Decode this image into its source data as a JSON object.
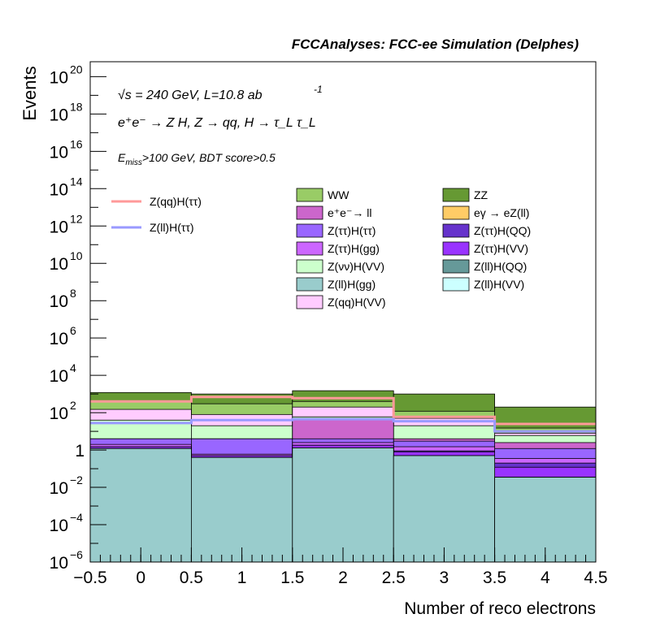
{
  "chart_data": {
    "type": "bar",
    "stacked": true,
    "log_y": true,
    "title": "FCCAnalyses: FCC-ee Simulation (Delphes)",
    "xlabel": "Number of reco electrons",
    "ylabel": "Events",
    "xlim": [
      -0.5,
      4.5
    ],
    "ylim_exp": [
      -6,
      20.8
    ],
    "x_ticks": [
      "−0.5",
      "0",
      "0.5",
      "1",
      "1.5",
      "2",
      "2.5",
      "3",
      "3.5",
      "4",
      "4.5"
    ],
    "y_ticks": [
      {
        "exp": -6,
        "label": "10",
        "sup": "−6"
      },
      {
        "exp": -4,
        "label": "10",
        "sup": "−4"
      },
      {
        "exp": -2,
        "label": "10",
        "sup": "−2"
      },
      {
        "exp": 0,
        "label": "1",
        "sup": ""
      },
      {
        "exp": 2,
        "label": "10",
        "sup": "2"
      },
      {
        "exp": 4,
        "label": "10",
        "sup": "4"
      },
      {
        "exp": 6,
        "label": "10",
        "sup": "6"
      },
      {
        "exp": 8,
        "label": "10",
        "sup": "8"
      },
      {
        "exp": 10,
        "label": "10",
        "sup": "10"
      },
      {
        "exp": 12,
        "label": "10",
        "sup": "12"
      },
      {
        "exp": 14,
        "label": "10",
        "sup": "14"
      },
      {
        "exp": 16,
        "label": "10",
        "sup": "16"
      },
      {
        "exp": 18,
        "label": "10",
        "sup": "18"
      },
      {
        "exp": 20,
        "label": "10",
        "sup": "20"
      }
    ],
    "bins": [
      0,
      1,
      2,
      3,
      4
    ],
    "annotations": {
      "line1": "√s = 240 GeV, L=10.8 ab",
      "line1_sup": "-1",
      "line2": "e⁺e⁻ → Z H, Z → qq, H → τ_L τ_L",
      "line3_main": "E",
      "line3_sub": "miss",
      "line3_rest": ">100 GeV, BDT score>0.5"
    },
    "stack_cumulative": [
      {
        "name": "Z(ll)H(gg)",
        "color": "#99cccc",
        "values": [
          1.2,
          0.4,
          1.3,
          0.5,
          0.035
        ]
      },
      {
        "name": "eγ → eZ(ll)",
        "color": "#ffcc66",
        "values": [
          1e-06,
          1e-06,
          0.01,
          0.5,
          0.035
        ]
      },
      {
        "name": "Z(ll)H(VV)",
        "color": "#ccffff",
        "values": [
          1.2,
          0.4,
          1.3,
          0.5,
          0.035
        ]
      },
      {
        "name": "Z(ll)H(QQ)",
        "color": "#669999",
        "values": [
          1.2,
          0.4,
          1.3,
          0.5,
          0.035
        ]
      },
      {
        "name": "Z(ττ)H(VV)",
        "color": "#9933ff",
        "values": [
          1.5,
          0.5,
          1.8,
          0.8,
          0.12
        ]
      },
      {
        "name": "Z(ττ)H(QQ)",
        "color": "#6633cc",
        "values": [
          1.5,
          0.5,
          1.8,
          0.9,
          0.2
        ]
      },
      {
        "name": "Z(ττ)H(gg)",
        "color": "#cc66ff",
        "values": [
          2.0,
          0.6,
          2.5,
          1.5,
          0.35
        ]
      },
      {
        "name": "Z(ττ)H(ττ)",
        "color": "#9966ff",
        "values": [
          4.0,
          4.0,
          4.0,
          3.0,
          1.2
        ]
      },
      {
        "name": "e⁺e⁻→ ll",
        "color": "#cc66cc",
        "values": [
          4.0,
          4.0,
          50,
          4.0,
          2.5
        ]
      },
      {
        "name": "Z(νν)H(VV)",
        "color": "#ccffcc",
        "values": [
          40,
          20,
          60,
          20,
          6
        ]
      },
      {
        "name": "Z(qq)H(VV)",
        "color": "#ffccff",
        "values": [
          150,
          80,
          200,
          50,
          8
        ]
      },
      {
        "name": "WW",
        "color": "#99cc66",
        "values": [
          400,
          300,
          400,
          120,
          15
        ]
      },
      {
        "name": "ZZ",
        "color": "#669933",
        "values": [
          1200,
          1000,
          1500,
          1000,
          200
        ]
      }
    ],
    "lines": [
      {
        "name": "Z(qq)H(ττ)",
        "color": "#ff9999",
        "values": [
          400,
          700,
          600,
          60,
          25
        ]
      },
      {
        "name": "Z(ll)H(ττ)",
        "color": "#9999ff",
        "values": [
          28,
          40,
          45,
          35,
          10
        ]
      }
    ],
    "legend_stack": [
      {
        "name": "WW",
        "color": "#99cc66"
      },
      {
        "name": "ZZ",
        "color": "#669933"
      },
      {
        "name": "e⁺e⁻→ ll",
        "color": "#cc66cc"
      },
      {
        "name": "eγ → eZ(ll)",
        "color": "#ffcc66"
      },
      {
        "name": "Z(ττ)H(ττ)",
        "color": "#9966ff"
      },
      {
        "name": "Z(ττ)H(QQ)",
        "color": "#6633cc"
      },
      {
        "name": "Z(ττ)H(gg)",
        "color": "#cc66ff"
      },
      {
        "name": "Z(ττ)H(VV)",
        "color": "#9933ff"
      },
      {
        "name": "Z(νν)H(VV)",
        "color": "#ccffcc"
      },
      {
        "name": "Z(ll)H(QQ)",
        "color": "#669999"
      },
      {
        "name": "Z(ll)H(gg)",
        "color": "#99cccc"
      },
      {
        "name": "Z(ll)H(VV)",
        "color": "#ccffff"
      },
      {
        "name": "Z(qq)H(VV)",
        "color": "#ffccff"
      }
    ],
    "legend_lines": [
      {
        "name": "Z(qq)H(ττ)",
        "color": "#ff9999"
      },
      {
        "name": "Z(ll)H(ττ)",
        "color": "#9999ff"
      }
    ]
  }
}
